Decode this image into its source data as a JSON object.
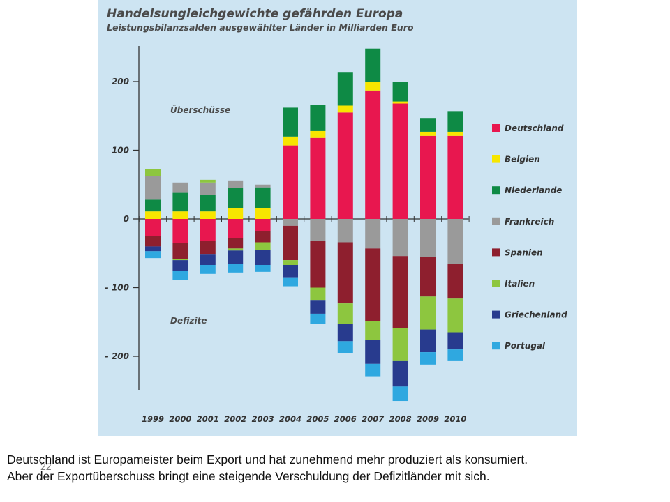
{
  "chart_data": {
    "type": "bar",
    "stacked": true,
    "title": "Handelsungleichgewichte gefährden Europa",
    "subtitle": "Leistungsbilanzsalden ausgewählter Länder in Milliarden Euro",
    "xlabel": "",
    "ylabel": "",
    "ylim": [
      -265,
      250
    ],
    "yticks": [
      200,
      100,
      0,
      -100,
      -200
    ],
    "ytick_labels": [
      "200",
      "100",
      "0",
      "– 100",
      "– 200"
    ],
    "categories": [
      "1999",
      "2000",
      "2001",
      "2002",
      "2003",
      "2004",
      "2005",
      "2006",
      "2007",
      "2008",
      "2009",
      "2010"
    ],
    "annotations": {
      "surplus": "Überschüsse",
      "deficit": "Defizite"
    },
    "legend_position": "right",
    "grid": false,
    "series": [
      {
        "name": "Deutschland",
        "color": "#e8174f",
        "values": [
          -25,
          -35,
          -32,
          -28,
          -18,
          107,
          118,
          155,
          187,
          168,
          121,
          121
        ]
      },
      {
        "name": "Belgien",
        "color": "#f7e600",
        "values": [
          11,
          11,
          11,
          16,
          16,
          13,
          10,
          10,
          13,
          3,
          6,
          6
        ]
      },
      {
        "name": "Niederlande",
        "color": "#0e8a45",
        "values": [
          17,
          27,
          24,
          29,
          30,
          42,
          38,
          49,
          48,
          29,
          20,
          30
        ]
      },
      {
        "name": "Frankreich",
        "color": "#9a9a9a",
        "values": [
          34,
          15,
          18,
          11,
          4,
          -10,
          -32,
          -34,
          -43,
          -54,
          -55,
          -65
        ]
      },
      {
        "name": "Spanien",
        "color": "#8e1f2e",
        "values": [
          -15,
          -23,
          -20,
          -15,
          -16,
          -50,
          -68,
          -89,
          -106,
          -105,
          -58,
          -51
        ]
      },
      {
        "name": "Italien",
        "color": "#8dc63f",
        "values": [
          11,
          -2,
          4,
          -3,
          -11,
          -7,
          -18,
          -30,
          -27,
          -48,
          -48,
          -49
        ]
      },
      {
        "name": "Griechenland",
        "color": "#283b8e",
        "values": [
          -7,
          -16,
          -15,
          -20,
          -22,
          -19,
          -20,
          -25,
          -35,
          -37,
          -33,
          -25
        ]
      },
      {
        "name": "Portugal",
        "color": "#2fa8e0",
        "values": [
          -10,
          -13,
          -13,
          -12,
          -10,
          -12,
          -15,
          -17,
          -18,
          -21,
          -18,
          -17
        ]
      }
    ]
  },
  "caption": {
    "line1": "Deutschland ist Europameister beim Export und hat zunehmend mehr produziert als konsumiert.",
    "line2": "Aber der Exportüberschuss bringt eine steigende Verschuldung der Defizitländer mit sich."
  },
  "page_number": "22",
  "colors": {
    "panel_background": "#cde4f2",
    "axis": "#333333"
  }
}
